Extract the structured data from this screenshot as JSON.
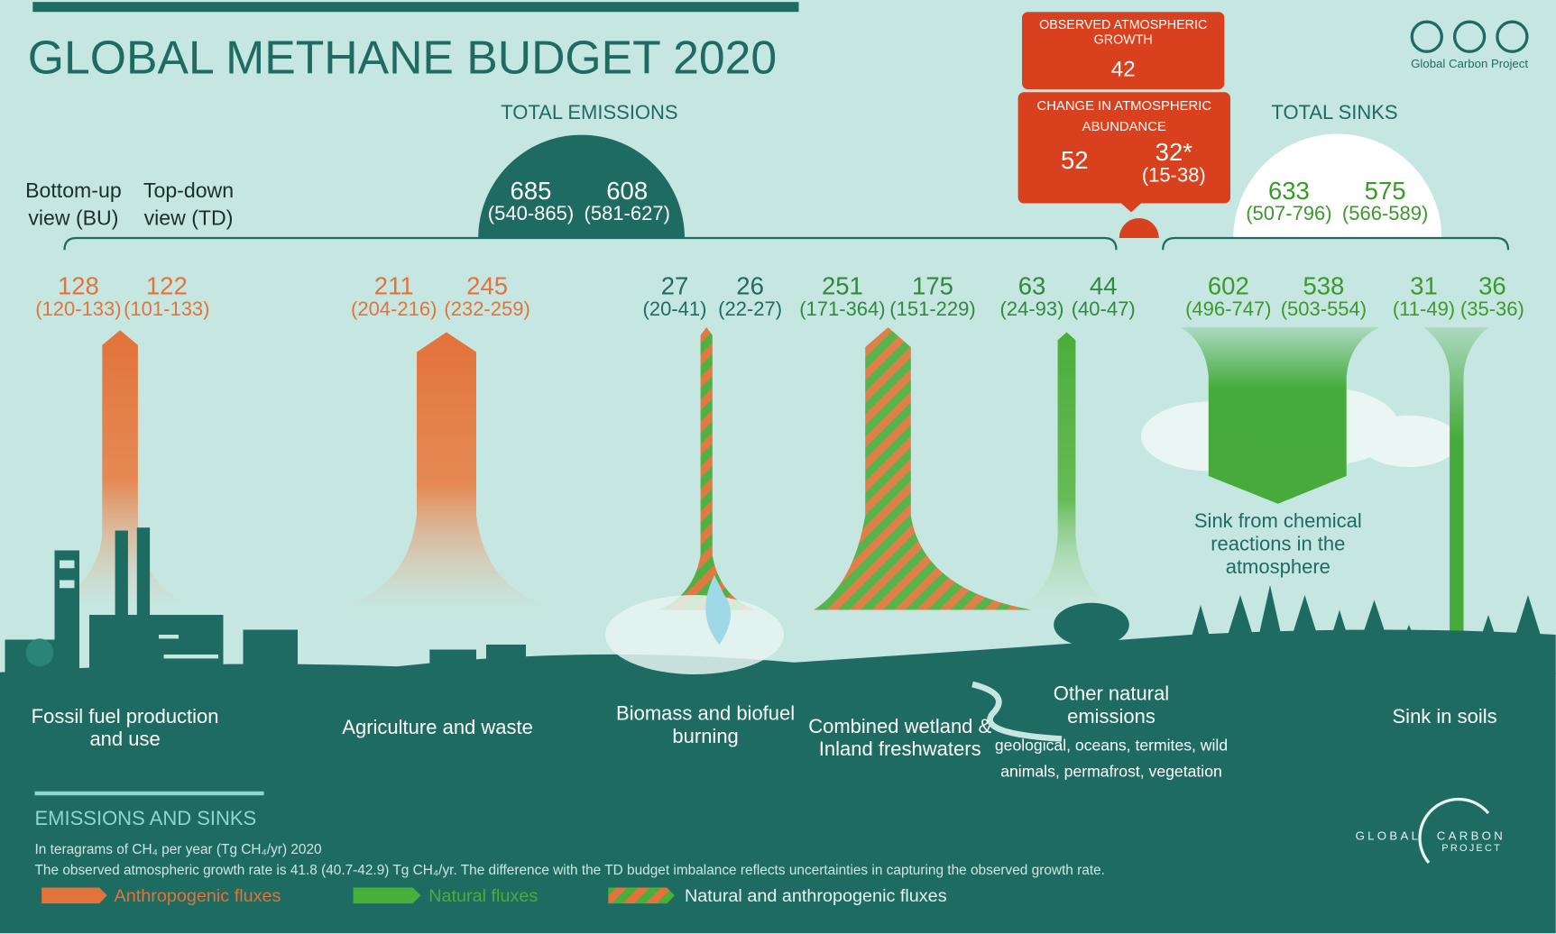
{
  "header": {
    "title": "GLOBAL METHANE BUDGET 2020",
    "credit": "Global Carbon Project"
  },
  "observed": {
    "label": "OBSERVED ATMOSPHERIC GROWTH",
    "value": 42
  },
  "change": {
    "label": "CHANGE IN ATMOSPHERIC ABUNDANCE",
    "bu": 52,
    "td": "32*",
    "td_range": "(15-38)"
  },
  "views": {
    "bu": "Bottom-up view (BU)",
    "td": "Top-down view (TD)"
  },
  "total_emissions": {
    "label": "TOTAL EMISSIONS",
    "bu": 685,
    "bu_range": "(540-865)",
    "td": 608,
    "td_range": "(581-627)"
  },
  "total_sinks": {
    "label": "TOTAL SINKS",
    "bu": 633,
    "bu_range": "(507-796)",
    "td": 575,
    "td_range": "(566-589)"
  },
  "fluxes": [
    {
      "name": "Fossil fuel production and use",
      "bu": 128,
      "bu_range": "(120-133)",
      "td": 122,
      "td_range": "(101-133)",
      "color": "#e2733a"
    },
    {
      "name": "Agriculture and waste",
      "bu": 211,
      "bu_range": "(204-216)",
      "td": 245,
      "td_range": "(232-259)",
      "color": "#e2733a"
    },
    {
      "name": "Biomass and biofuel burning",
      "bu": 27,
      "bu_range": "(20-41)",
      "td": 26,
      "td_range": "(22-27)",
      "color": "#1e6b62"
    },
    {
      "name": "Combined wetland & Inland freshwaters",
      "bu": 251,
      "bu_range": "(171-364)",
      "td": 175,
      "td_range": "(151-229)",
      "color": "#2f8a3c"
    },
    {
      "name": "Other natural emissions",
      "detail": "geological, oceans, termites, wild animals, permafrost, vegetation",
      "bu": 63,
      "bu_range": "(24-93)",
      "td": 44,
      "td_range": "(40-47)",
      "color": "#2f8a3c"
    },
    {
      "name": "Sink from chemical reactions in the atmosphere",
      "bu": 602,
      "bu_range": "(496-747)",
      "td": 538,
      "td_range": "(503-554)",
      "color": "#3a9a2a"
    },
    {
      "name": "Sink in soils",
      "bu": 31,
      "bu_range": "(11-49)",
      "td": 36,
      "td_range": "(35-36)",
      "color": "#3a9a2a"
    }
  ],
  "legend": {
    "title": "EMISSIONS AND SINKS",
    "unit": "In teragrams of CH₄ per year (Tg CH₄/yr) 2020",
    "note": "The observed atmospheric growth rate is 41.8 (40.7-42.9) Tg CH₄/yr. The difference with the TD budget imbalance reflects uncertainties in capturing the observed growth rate.",
    "items": [
      "Anthropogenic fluxes",
      "Natural fluxes",
      "Natural and anthropogenic  fluxes"
    ]
  },
  "logo": {
    "line1": "GLOBAL",
    "line2": "CARBON",
    "line3": "PROJECT"
  }
}
